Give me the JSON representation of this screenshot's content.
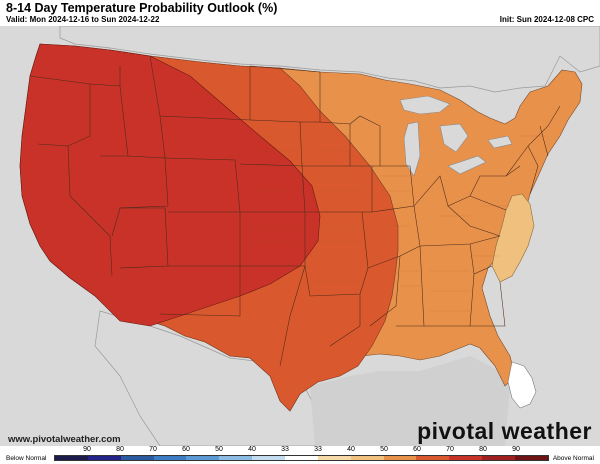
{
  "header": {
    "title": "8-14 Day Temperature Probability Outlook (%)",
    "valid": "Valid: Mon 2024-12-16 to Sun 2024-12-22",
    "init": "Init: Sun 2024-12-08 CPC"
  },
  "map": {
    "region": "Contiguous United States",
    "regions": [
      {
        "name": "west-mountain-core",
        "category": "above",
        "probability_range": "70-80",
        "color": "#c83228"
      },
      {
        "name": "plains-midwest-band",
        "category": "above",
        "probability_range": "60-70",
        "color": "#d9582d"
      },
      {
        "name": "east-south",
        "category": "above",
        "probability_range": "50-60",
        "color": "#e8914b"
      },
      {
        "name": "mid-atlantic-carolinas",
        "category": "above",
        "probability_range": "40-50",
        "color": "#f0c07f"
      },
      {
        "name": "south-florida",
        "category": "normal",
        "probability_range": "33",
        "color": "#ffffff"
      }
    ]
  },
  "footer": {
    "url": "www.pivotalweather.com",
    "brand": "pivotal weather"
  },
  "legend": {
    "below_label": "Below Normal",
    "above_label": "Above Normal",
    "ticks": [
      "90",
      "80",
      "70",
      "60",
      "50",
      "40",
      "33",
      "33",
      "40",
      "50",
      "60",
      "70",
      "80",
      "90"
    ],
    "colors": [
      "#1a1a4d",
      "#23238a",
      "#2c5aa0",
      "#3b7cc4",
      "#5b9ad4",
      "#8cbbe3",
      "#c3dbef",
      "#ffffff",
      "#f5d9a8",
      "#f0c07f",
      "#e8914b",
      "#d9582d",
      "#c83228",
      "#a02020",
      "#6e1414"
    ]
  }
}
